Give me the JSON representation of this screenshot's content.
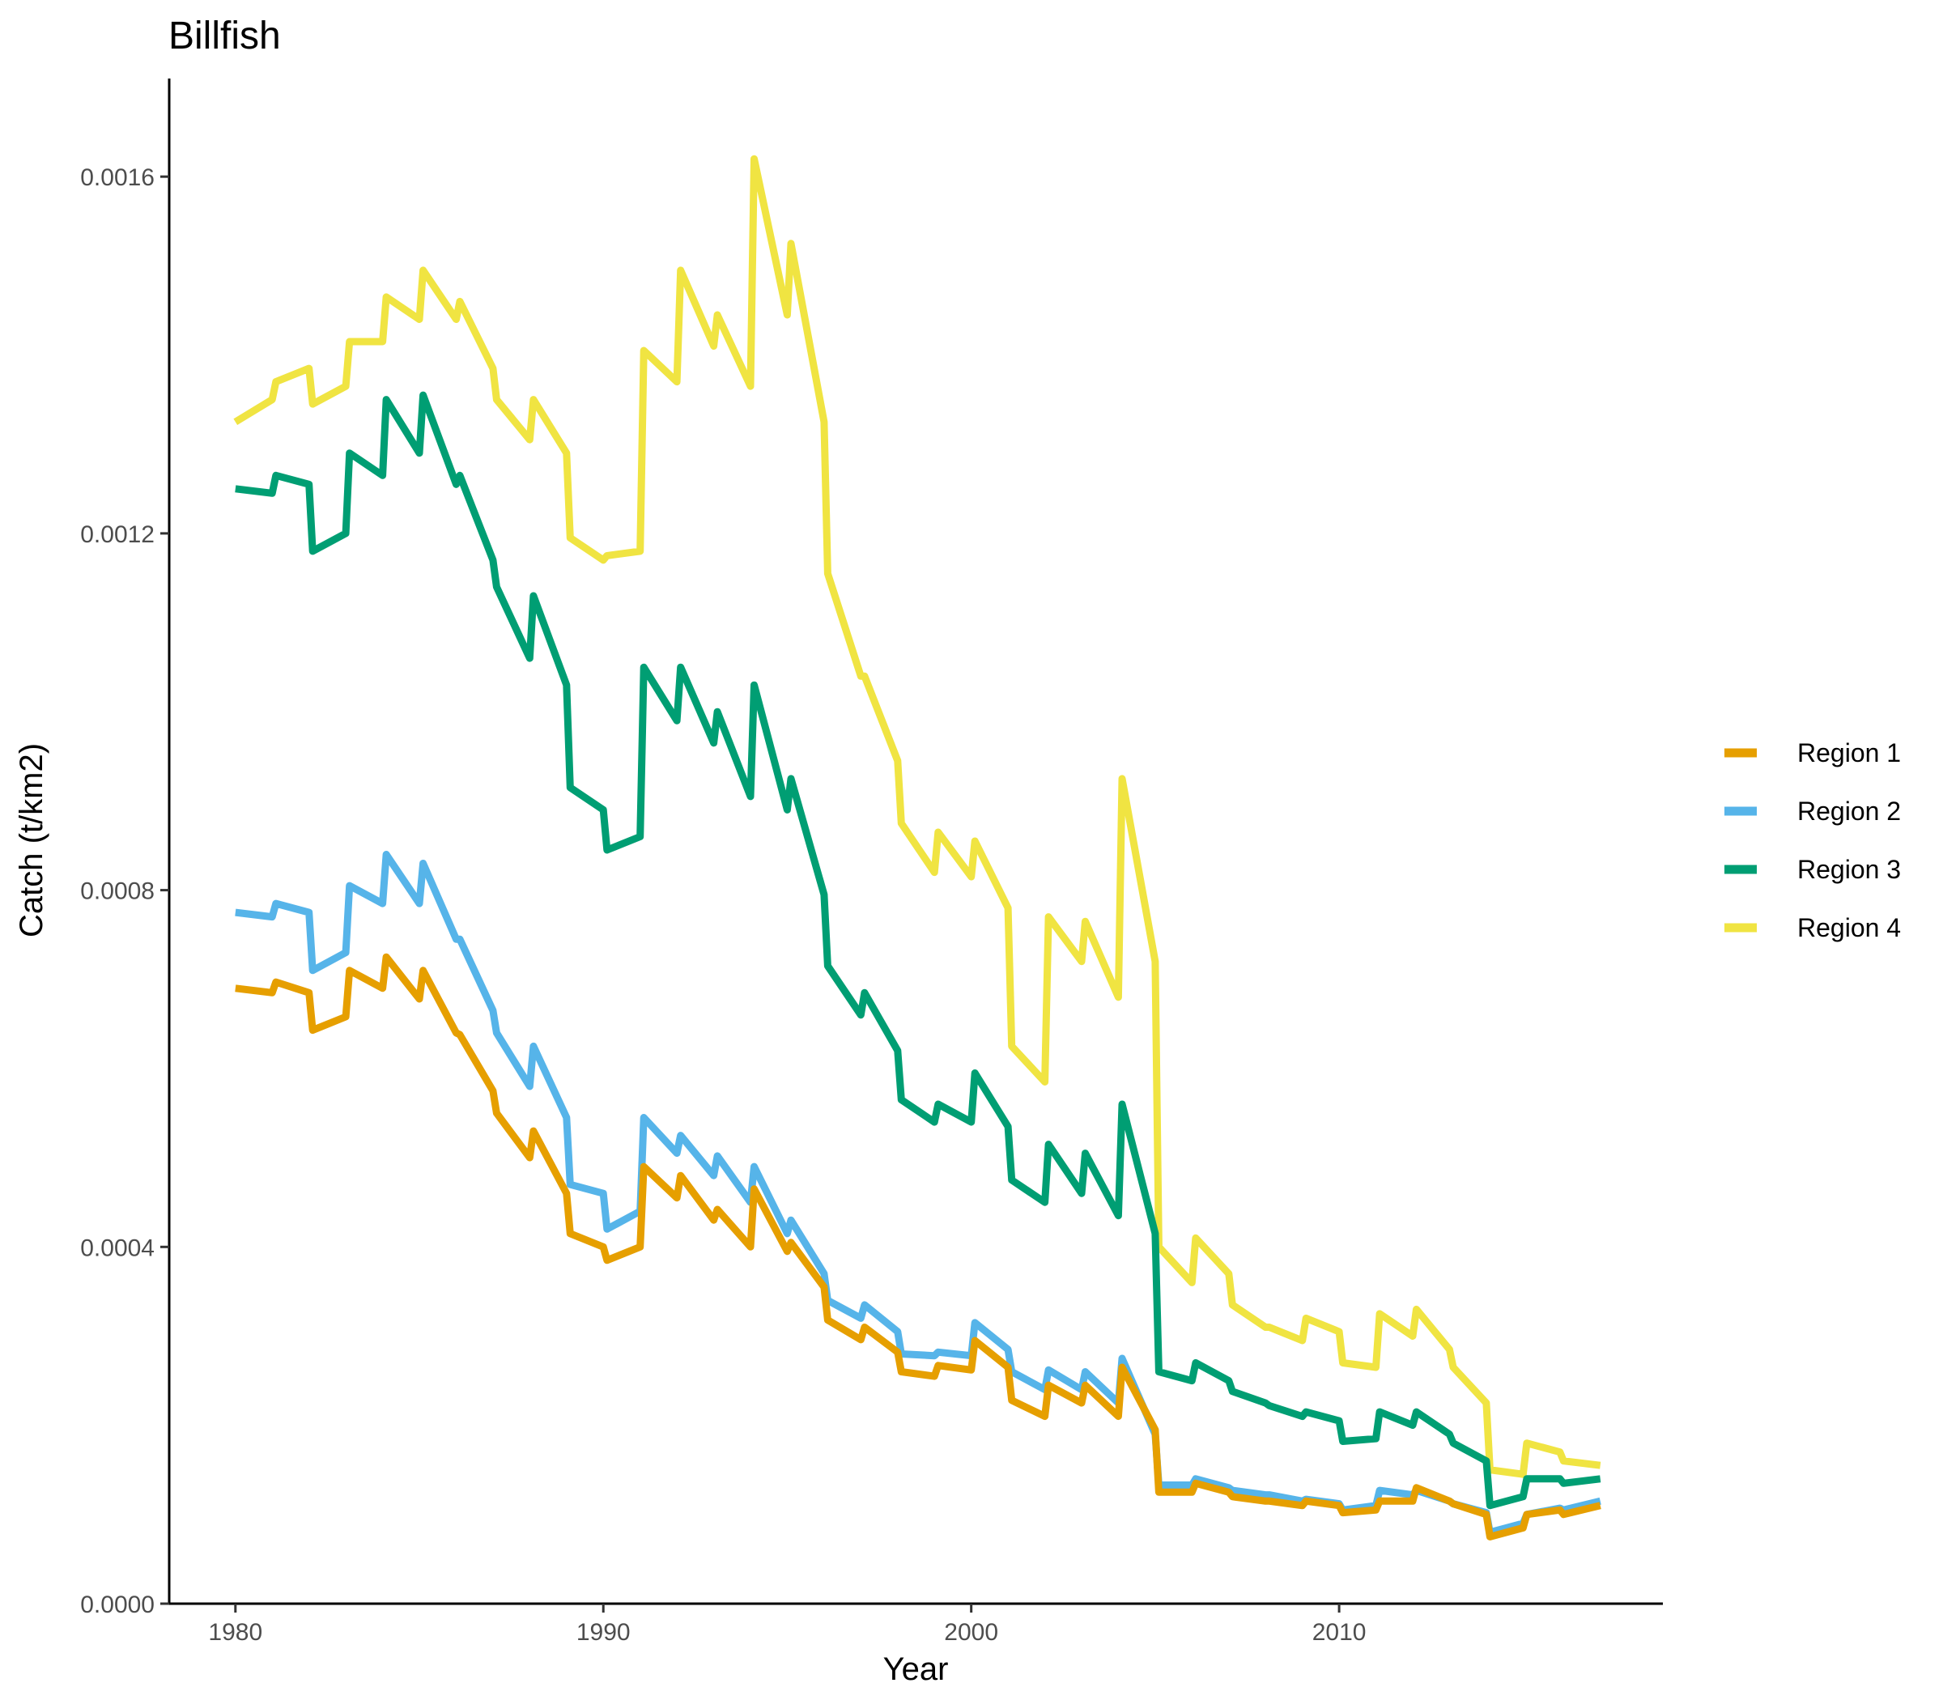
{
  "chart_data": {
    "type": "line",
    "title": "Billfish",
    "xlabel": "Year",
    "ylabel": "Catch (t/km2)",
    "xlim": [
      1978.2,
      2018.8
    ],
    "ylim": [
      0,
      0.00171
    ],
    "x_ticks": [
      1980,
      1990,
      2000,
      2010
    ],
    "x_tick_labels": [
      "1980",
      "1990",
      "2000",
      "2010"
    ],
    "y_ticks": [
      0,
      0.0004,
      0.0008,
      0.0012,
      0.0016
    ],
    "y_tick_labels": [
      "0.0000",
      "0.0004",
      "0.0008",
      "0.0012",
      "0.0016"
    ],
    "grid": false,
    "legend_position": "right",
    "x": [
      1980.0,
      1981.0,
      1981.1,
      1982.0,
      1982.1,
      1983.0,
      1983.1,
      1984.0,
      1984.1,
      1985.0,
      1985.1,
      1986.0,
      1986.1,
      1987.0,
      1987.1,
      1988.0,
      1988.1,
      1989.0,
      1989.1,
      1990.0,
      1990.1,
      1991.0,
      1991.1,
      1992.0,
      1992.1,
      1993.0,
      1993.1,
      1994.0,
      1994.1,
      1995.0,
      1995.1,
      1996.0,
      1996.1,
      1997.0,
      1997.1,
      1998.0,
      1998.1,
      1999.0,
      1999.1,
      2000.0,
      2000.1,
      2001.0,
      2001.1,
      2002.0,
      2002.1,
      2003.0,
      2003.1,
      2004.0,
      2004.1,
      2005.0,
      2005.1,
      2006.0,
      2006.1,
      2007.0,
      2007.1,
      2008.0,
      2008.1,
      2009.0,
      2009.1,
      2010.0,
      2010.1,
      2011.0,
      2011.1,
      2012.0,
      2012.1,
      2013.0,
      2013.1,
      2014.0,
      2014.1,
      2015.0,
      2015.1,
      2016.0,
      2016.1,
      2017.1
    ],
    "series": [
      {
        "name": "Region 1",
        "color": "#E69F00",
        "values": [
          0.00069,
          0.000685,
          0.000697,
          0.000685,
          0.000643,
          0.000658,
          0.00071,
          0.00069,
          0.000725,
          0.000678,
          0.00071,
          0.00064,
          0.000638,
          0.000575,
          0.00055,
          0.0005,
          0.00053,
          0.00046,
          0.000415,
          0.0004,
          0.000385,
          0.0004,
          0.00049,
          0.000455,
          0.00048,
          0.00043,
          0.000442,
          0.0004,
          0.000465,
          0.000395,
          0.000405,
          0.000355,
          0.000318,
          0.000296,
          0.00031,
          0.000282,
          0.00026,
          0.000255,
          0.000267,
          0.000262,
          0.000295,
          0.000265,
          0.000228,
          0.00021,
          0.000245,
          0.000225,
          0.000245,
          0.00021,
          0.000265,
          0.000195,
          0.000125,
          0.000125,
          0.000135,
          0.000125,
          0.00012,
          0.000115,
          0.000115,
          0.00011,
          0.000115,
          0.00011,
          0.000102,
          0.000105,
          0.000115,
          0.000115,
          0.00013,
          0.000115,
          0.000112,
          0.0001,
          7.5e-05,
          8.5e-05,
          0.0001,
          0.000105,
          0.0001,
          0.00011
        ]
      },
      {
        "name": "Region 2",
        "color": "#56B4E9",
        "values": [
          0.000775,
          0.00077,
          0.000785,
          0.000775,
          0.00071,
          0.00073,
          0.000805,
          0.000785,
          0.00084,
          0.000785,
          0.00083,
          0.000745,
          0.000745,
          0.000665,
          0.00064,
          0.00058,
          0.000625,
          0.000545,
          0.00047,
          0.00046,
          0.00042,
          0.00044,
          0.000545,
          0.000505,
          0.000525,
          0.00048,
          0.000502,
          0.00045,
          0.00049,
          0.000415,
          0.00043,
          0.00037,
          0.00034,
          0.00032,
          0.000335,
          0.000305,
          0.00028,
          0.000278,
          0.000282,
          0.000278,
          0.000315,
          0.000285,
          0.00026,
          0.00024,
          0.000262,
          0.00024,
          0.00026,
          0.000225,
          0.000275,
          0.00019,
          0.000133,
          0.000133,
          0.00014,
          0.00013,
          0.000127,
          0.000122,
          0.000122,
          0.000115,
          0.000117,
          0.000112,
          0.000105,
          0.00011,
          0.000127,
          0.000122,
          0.000127,
          0.000115,
          0.000112,
          0.000102,
          8e-05,
          9e-05,
          0.0001,
          0.000107,
          0.000105,
          0.000115
        ]
      },
      {
        "name": "Region 3",
        "color": "#009E73",
        "values": [
          0.00125,
          0.001245,
          0.001265,
          0.001255,
          0.00118,
          0.0012,
          0.00129,
          0.001265,
          0.00135,
          0.00129,
          0.001355,
          0.001255,
          0.001265,
          0.00117,
          0.00114,
          0.00106,
          0.00113,
          0.00103,
          0.000915,
          0.00089,
          0.000845,
          0.00086,
          0.00105,
          0.00099,
          0.00105,
          0.000965,
          0.001,
          0.000905,
          0.00103,
          0.00089,
          0.000925,
          0.000795,
          0.000715,
          0.00066,
          0.000685,
          0.00062,
          0.000565,
          0.00054,
          0.00056,
          0.00054,
          0.000595,
          0.000535,
          0.000475,
          0.00045,
          0.000515,
          0.00046,
          0.000505,
          0.000435,
          0.00056,
          0.000415,
          0.00026,
          0.00025,
          0.00027,
          0.00025,
          0.000238,
          0.000225,
          0.000222,
          0.00021,
          0.000215,
          0.000205,
          0.000182,
          0.000185,
          0.000215,
          0.0002,
          0.000215,
          0.00019,
          0.00018,
          0.00016,
          0.00011,
          0.00012,
          0.00014,
          0.00014,
          0.000135,
          0.00014
        ]
      },
      {
        "name": "Region 4",
        "color": "#F0E442",
        "values": [
          0.001325,
          0.00135,
          0.00137,
          0.001385,
          0.001345,
          0.001365,
          0.001415,
          0.001415,
          0.001465,
          0.00144,
          0.001495,
          0.00144,
          0.00146,
          0.001385,
          0.00135,
          0.001305,
          0.00135,
          0.00129,
          0.001195,
          0.00117,
          0.001175,
          0.00118,
          0.001405,
          0.00137,
          0.001495,
          0.00141,
          0.001445,
          0.001365,
          0.00162,
          0.001445,
          0.001525,
          0.001325,
          0.001155,
          0.00104,
          0.00104,
          0.000945,
          0.000875,
          0.00082,
          0.000865,
          0.000815,
          0.000855,
          0.00078,
          0.000625,
          0.000585,
          0.00077,
          0.00072,
          0.000765,
          0.00068,
          0.000925,
          0.00072,
          0.0004,
          0.00036,
          0.00041,
          0.00037,
          0.000335,
          0.00031,
          0.00031,
          0.000295,
          0.00032,
          0.000305,
          0.00027,
          0.000265,
          0.000325,
          0.0003,
          0.00033,
          0.000285,
          0.000265,
          0.000225,
          0.00015,
          0.000145,
          0.00018,
          0.00017,
          0.00016,
          0.000155
        ]
      }
    ]
  }
}
